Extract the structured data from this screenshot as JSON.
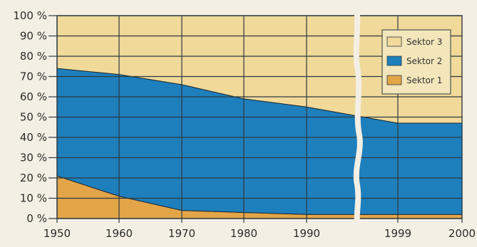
{
  "chart_data": {
    "type": "area",
    "stacked": true,
    "title": "",
    "xlabel": "",
    "ylabel": "",
    "x": [
      1950,
      1960,
      1970,
      1980,
      1990,
      1999,
      2000
    ],
    "x_tick_labels": [
      "1950",
      "1960",
      "1970",
      "1980",
      "1990",
      "1999",
      "2000"
    ],
    "x_axis_break": "between 1990 and 1999",
    "ylim": [
      0,
      100
    ],
    "y_tick_labels": [
      "0 %",
      "10 %",
      "20 %",
      "30 %",
      "40 %",
      "50 %",
      "60 %",
      "70 %",
      "80 %",
      "90 %",
      "100 %"
    ],
    "series": [
      {
        "name": "Sektor 1",
        "color": "#e3a548",
        "values": [
          21,
          11,
          4,
          3,
          2,
          2,
          2
        ]
      },
      {
        "name": "Sektor 2",
        "color": "#1e7fbd",
        "values": [
          53,
          60,
          62,
          56,
          53,
          45,
          45
        ]
      },
      {
        "name": "Sektor 3",
        "color": "#f0d999",
        "values": [
          26,
          29,
          34,
          41,
          45,
          53,
          53
        ]
      }
    ],
    "grid": true,
    "legend_position": "top-right"
  }
}
